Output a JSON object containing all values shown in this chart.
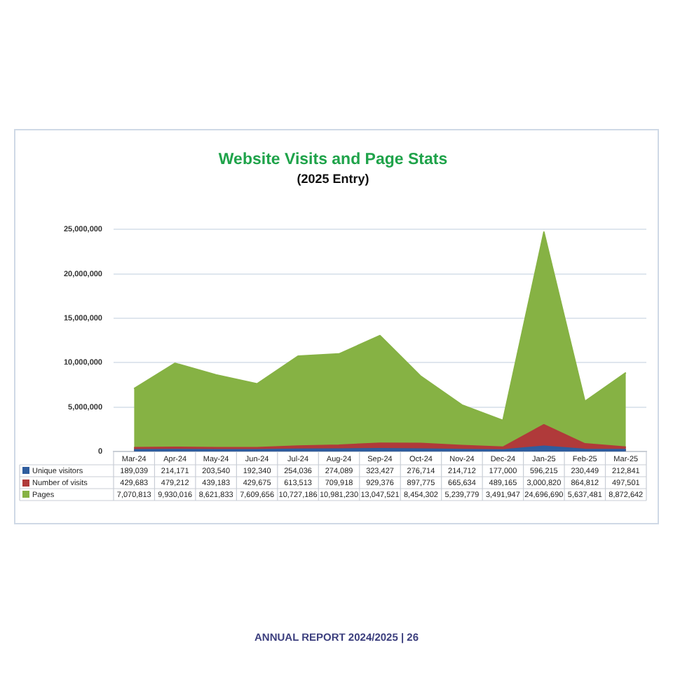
{
  "chart_data": {
    "type": "area",
    "title": "Website Visits and Page Stats",
    "subtitle": "(2025 Entry)",
    "categories": [
      "Mar-24",
      "Apr-24",
      "May-24",
      "Jun-24",
      "Jul-24",
      "Aug-24",
      "Sep-24",
      "Oct-24",
      "Nov-24",
      "Dec-24",
      "Jan-25",
      "Feb-25",
      "Mar-25"
    ],
    "series": [
      {
        "name": "Unique visitors",
        "color": "#2f5d9e",
        "values": [
          189039,
          214171,
          203540,
          192340,
          254036,
          274089,
          323427,
          276714,
          214712,
          177000,
          596215,
          230449,
          212841
        ],
        "value_labels": [
          "189,039",
          "214,171",
          "203,540",
          "192,340",
          "254,036",
          "274,089",
          "323,427",
          "276,714",
          "214,712",
          "177,000",
          "596,215",
          "230,449",
          "212,841"
        ]
      },
      {
        "name": "Number of visits",
        "color": "#b03a3a",
        "values": [
          429683,
          479212,
          439183,
          429675,
          613513,
          709918,
          929376,
          897775,
          665634,
          489165,
          3000820,
          864812,
          497501
        ],
        "value_labels": [
          "429,683",
          "479,212",
          "439,183",
          "429,675",
          "613,513",
          "709,918",
          "929,376",
          "897,775",
          "665,634",
          "489,165",
          "3,000,820",
          "864,812",
          "497,501"
        ]
      },
      {
        "name": "Pages",
        "color": "#86b244",
        "values": [
          7070813,
          9930016,
          8621833,
          7609656,
          10727186,
          10981230,
          13047521,
          8454302,
          5239779,
          3491947,
          24696690,
          5637481,
          8872642
        ],
        "value_labels": [
          "7,070,813",
          "9,930,016",
          "8,621,833",
          "7,609,656",
          "10,727,186",
          "10,981,230",
          "13,047,521",
          "8,454,302",
          "5,239,779",
          "3,491,947",
          "24,696,690",
          "5,637,481",
          "8,872,642"
        ]
      }
    ],
    "ylim": [
      0,
      25000000
    ],
    "yticks": [
      0,
      {
        "value": 5000000,
        "label": "5,000,000"
      },
      {
        "value": 10000000,
        "label": "10,000,000"
      },
      {
        "value": 15000000,
        "label": "15,000,000"
      },
      {
        "value": 20000000,
        "label": "20,000,000"
      },
      {
        "value": 25000000,
        "label": "25,000,000"
      }
    ],
    "grid": "y",
    "legend": "bottom left",
    "marker": "none",
    "annotations": [
      "ANNUAL REPORT 2024/2025 | 26"
    ]
  }
}
